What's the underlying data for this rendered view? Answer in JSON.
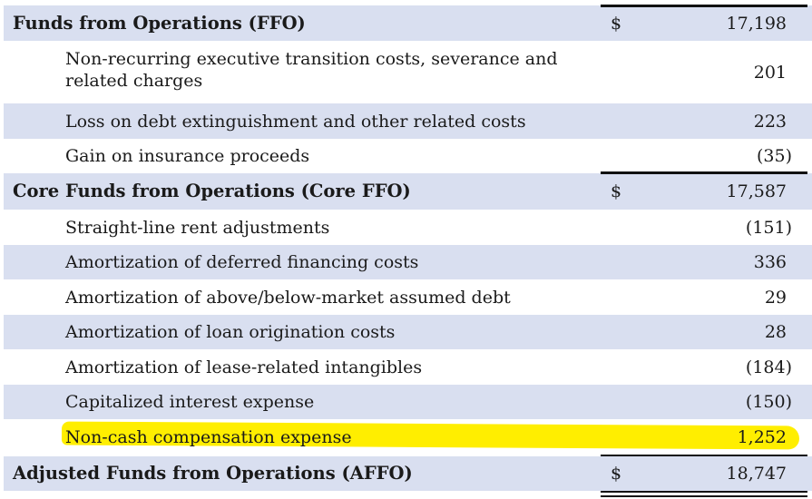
{
  "rows": [
    {
      "label": "Funds from Operations (FFO)",
      "dollar": "$",
      "amount": "17,198"
    },
    {
      "label": "Non-recurring executive transition costs, severance and",
      "label2": "related charges",
      "amount": "201"
    },
    {
      "label": "Loss on debt extinguishment and other related costs",
      "amount": "223"
    },
    {
      "label": "Gain on insurance proceeds",
      "amount": "(35)"
    },
    {
      "label": "Core Funds from Operations (Core FFO)",
      "dollar": "$",
      "amount": "17,587"
    },
    {
      "label": "Straight-line rent adjustments",
      "amount": "(151)"
    },
    {
      "label": "Amortization of deferred financing costs",
      "amount": "336"
    },
    {
      "label": "Amortization of above/below-market assumed debt",
      "amount": "29"
    },
    {
      "label": "Amortization of loan origination costs",
      "amount": "28"
    },
    {
      "label": "Amortization of lease-related intangibles",
      "amount": "(184)"
    },
    {
      "label": "Capitalized interest expense",
      "amount": "(150)"
    },
    {
      "label": "Non-cash compensation expense",
      "amount": "1,252"
    },
    {
      "label": "Adjusted Funds from Operations (AFFO)",
      "dollar": "$",
      "amount": "18,747"
    }
  ],
  "colors": {
    "shade": "#d9dff0",
    "highlight": "#ffee00"
  }
}
